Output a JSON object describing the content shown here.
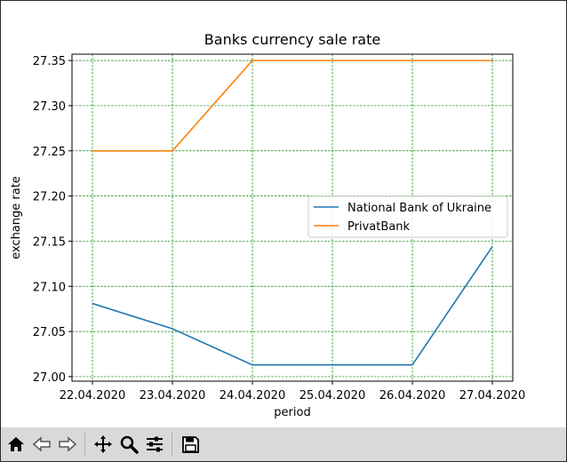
{
  "chart_data": {
    "type": "line",
    "title": "Banks currency sale rate",
    "xlabel": "period",
    "ylabel": "exchange rate",
    "categories": [
      "22.04.2020",
      "23.04.2020",
      "24.04.2020",
      "25.04.2020",
      "26.04.2020",
      "27.04.2020"
    ],
    "yticks": [
      "27.00",
      "27.05",
      "27.10",
      "27.15",
      "27.20",
      "27.25",
      "27.30",
      "27.35"
    ],
    "ylim": [
      26.995,
      27.357
    ],
    "grid": true,
    "legend_position": "center-right",
    "series": [
      {
        "name": "National Bank of Ukraine",
        "color": "#1f77b4",
        "values": [
          27.081,
          27.053,
          27.013,
          27.013,
          27.013,
          27.144
        ]
      },
      {
        "name": "PrivatBank",
        "color": "#ff7f0e",
        "values": [
          27.25,
          27.25,
          27.35,
          27.35,
          27.35,
          27.35
        ]
      }
    ]
  },
  "toolbar": {
    "buttons": [
      "home-icon",
      "back-icon",
      "forward-icon",
      "pan-icon",
      "zoom-icon",
      "configure-subplots-icon",
      "save-icon"
    ]
  }
}
